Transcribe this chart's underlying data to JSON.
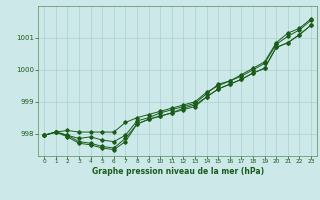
{
  "xlabel": "Graphe pression niveau de la mer (hPa)",
  "xlim": [
    -0.5,
    23.5
  ],
  "ylim": [
    997.3,
    1002.0
  ],
  "yticks": [
    998,
    999,
    1000,
    1001
  ],
  "xticks": [
    0,
    1,
    2,
    3,
    4,
    5,
    6,
    7,
    8,
    9,
    10,
    11,
    12,
    13,
    14,
    15,
    16,
    17,
    18,
    19,
    20,
    21,
    22,
    23
  ],
  "bg_color": "#cce8e8",
  "grid_color": "#aad0d0",
  "line_color": "#1a5c1a",
  "line1": [
    997.95,
    998.05,
    997.95,
    997.75,
    997.7,
    997.6,
    997.55,
    997.85,
    998.3,
    998.45,
    998.55,
    998.65,
    998.75,
    998.85,
    999.15,
    999.4,
    999.55,
    999.7,
    999.9,
    1000.05,
    1000.7,
    1000.85,
    1001.1,
    1001.4
  ],
  "line2": [
    997.95,
    998.05,
    997.95,
    997.85,
    997.9,
    997.8,
    997.75,
    997.95,
    998.4,
    998.5,
    998.65,
    998.75,
    998.85,
    998.95,
    999.25,
    999.55,
    999.65,
    999.8,
    1000.0,
    1000.2,
    1000.8,
    1001.05,
    1001.25,
    1001.55
  ],
  "line3": [
    997.95,
    998.05,
    998.1,
    998.05,
    998.05,
    998.05,
    998.05,
    998.35,
    998.5,
    998.6,
    998.7,
    998.8,
    998.9,
    999.0,
    999.3,
    999.5,
    999.65,
    999.85,
    1000.05,
    1000.25,
    1000.85,
    1001.15,
    1001.3,
    1001.6
  ],
  "line4": [
    997.95,
    998.05,
    997.9,
    997.7,
    997.65,
    997.55,
    997.5,
    997.75,
    998.3,
    998.45,
    998.55,
    998.65,
    998.8,
    998.9,
    999.15,
    999.4,
    999.55,
    999.7,
    999.9,
    1000.05,
    1000.7,
    1000.85,
    1001.1,
    1001.4
  ]
}
